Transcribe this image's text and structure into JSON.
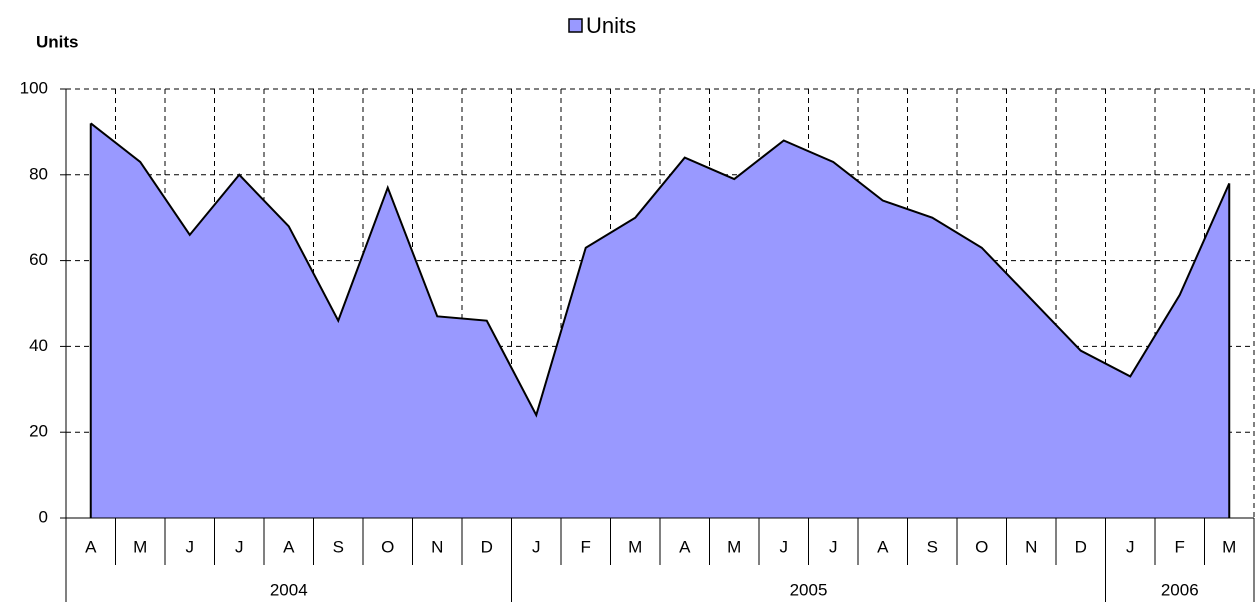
{
  "chart_data": {
    "type": "area",
    "y_label": "Units",
    "categories": [
      "A",
      "M",
      "J",
      "J",
      "A",
      "S",
      "O",
      "N",
      "D",
      "J",
      "F",
      "M",
      "A",
      "M",
      "J",
      "J",
      "A",
      "S",
      "O",
      "N",
      "D",
      "J",
      "F",
      "M"
    ],
    "groups": [
      {
        "name": "2004",
        "span": 9
      },
      {
        "name": "2005",
        "span": 12
      },
      {
        "name": "2006",
        "span": 3
      }
    ],
    "series": [
      {
        "name": "Units",
        "color": "#9999ff",
        "line_color": "#000000",
        "values": [
          92,
          83,
          66,
          80,
          68,
          46,
          77,
          47,
          46,
          24,
          63,
          70,
          84,
          79,
          88,
          83,
          74,
          70,
          63,
          51,
          39,
          33,
          52,
          78
        ]
      }
    ],
    "ylim": [
      0,
      100
    ],
    "yticks": [
      0,
      20,
      40,
      60,
      80,
      100
    ],
    "grid": true,
    "legend": "top"
  }
}
